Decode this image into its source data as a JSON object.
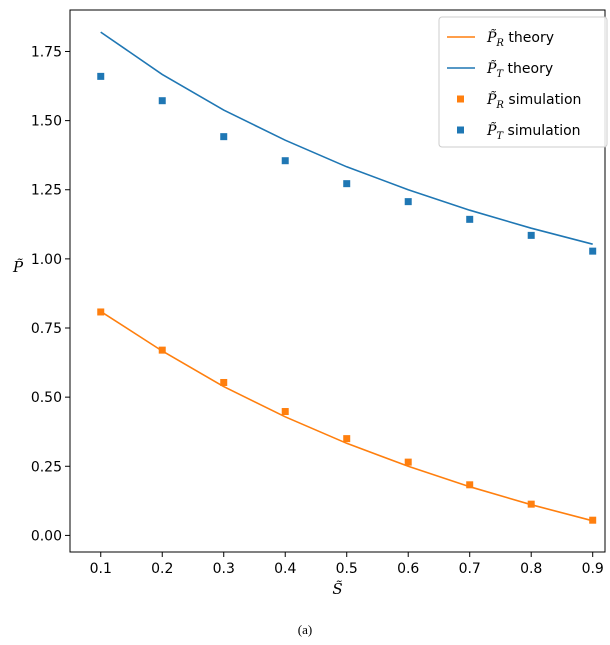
{
  "chart_data": {
    "type": "line",
    "xlabel": "S̃",
    "ylabel": "P̃",
    "xlim": [
      0.05,
      0.92
    ],
    "ylim": [
      -0.06,
      1.9
    ],
    "xticks": [
      0.1,
      0.2,
      0.3,
      0.4,
      0.5,
      0.6,
      0.7,
      0.8,
      0.9
    ],
    "xtick_labels": [
      "0.1",
      "0.2",
      "0.3",
      "0.4",
      "0.5",
      "0.6",
      "0.7",
      "0.8",
      "0.9"
    ],
    "yticks": [
      0.0,
      0.25,
      0.5,
      0.75,
      1.0,
      1.25,
      1.5,
      1.75
    ],
    "ytick_labels": [
      "0.00",
      "0.25",
      "0.50",
      "0.75",
      "1.00",
      "1.25",
      "1.50",
      "1.75"
    ],
    "grid": false,
    "legend_position": "top-right",
    "x": [
      0.1,
      0.2,
      0.3,
      0.4,
      0.5,
      0.6,
      0.7,
      0.8,
      0.9
    ],
    "series": [
      {
        "name": "P̃R theory",
        "symbol": "P̃",
        "sub": "R",
        "suffix": " theory",
        "kind": "line",
        "color": "#ff7f0e",
        "values": [
          0.81,
          0.667,
          0.538,
          0.429,
          0.333,
          0.25,
          0.176,
          0.111,
          0.053
        ]
      },
      {
        "name": "P̃T theory",
        "symbol": "P̃",
        "sub": "T",
        "suffix": " theory",
        "kind": "line",
        "color": "#1f77b4",
        "values": [
          1.82,
          1.667,
          1.538,
          1.429,
          1.333,
          1.25,
          1.176,
          1.111,
          1.053
        ]
      },
      {
        "name": "P̃R simulation",
        "symbol": "P̃",
        "sub": "R",
        "suffix": "  simulation",
        "kind": "marker",
        "color": "#ff7f0e",
        "values": [
          0.808,
          0.67,
          0.553,
          0.448,
          0.35,
          0.265,
          0.183,
          0.113,
          0.055
        ]
      },
      {
        "name": "P̃T simulation",
        "symbol": "P̃",
        "sub": "T",
        "suffix": "  simulation",
        "kind": "marker",
        "color": "#1f77b4",
        "values": [
          1.66,
          1.572,
          1.442,
          1.355,
          1.272,
          1.207,
          1.143,
          1.085,
          1.028
        ]
      }
    ]
  },
  "caption": "(a)"
}
